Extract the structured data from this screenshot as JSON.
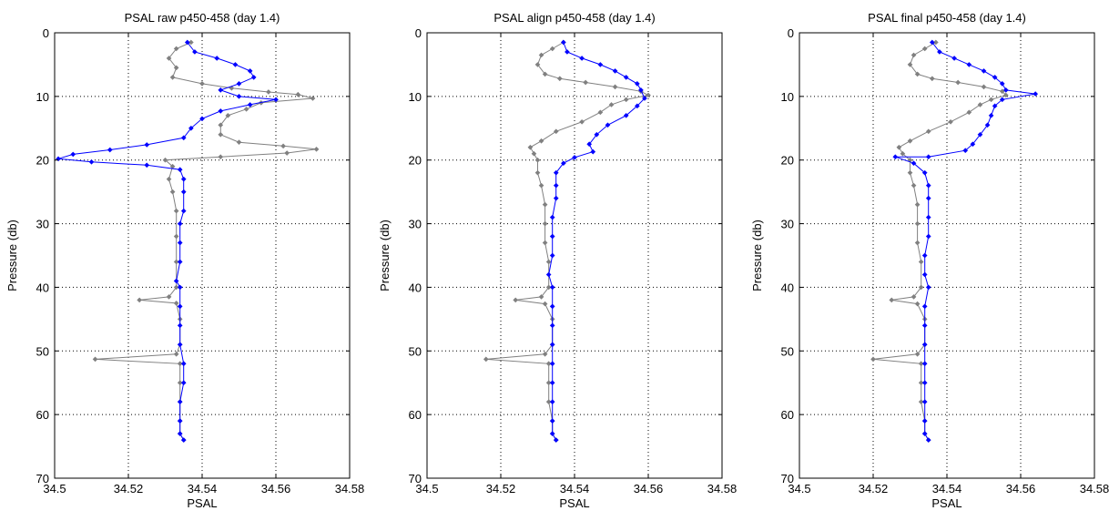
{
  "chart_data": [
    {
      "type": "line",
      "title": "PSAL raw p450-458 (day 1.4)",
      "xlabel": "PSAL",
      "ylabel": "Pressure (db)",
      "xlim": [
        34.5,
        34.58
      ],
      "ylim": [
        0,
        70
      ],
      "y_reversed": true,
      "grid": true,
      "x_ticks": [
        "34.5",
        "34.52",
        "34.54",
        "34.56",
        "34.58"
      ],
      "y_ticks": [
        "0",
        "10",
        "20",
        "30",
        "40",
        "50",
        "60",
        "70"
      ],
      "series": [
        {
          "color": "#808080",
          "marker": "diamond",
          "points": [
            [
              34.537,
              1.5
            ],
            [
              34.533,
              2.5
            ],
            [
              34.531,
              4
            ],
            [
              34.533,
              5.5
            ],
            [
              34.532,
              7
            ],
            [
              34.54,
              8
            ],
            [
              34.548,
              8.7
            ],
            [
              34.558,
              9.3
            ],
            [
              34.566,
              9.7
            ],
            [
              34.57,
              10.3
            ],
            [
              34.556,
              11
            ],
            [
              34.552,
              12
            ],
            [
              34.547,
              13
            ],
            [
              34.545,
              14.5
            ],
            [
              34.545,
              16
            ],
            [
              34.55,
              17.2
            ],
            [
              34.562,
              17.8
            ],
            [
              34.571,
              18.3
            ],
            [
              34.563,
              18.9
            ],
            [
              34.545,
              19.5
            ],
            [
              34.53,
              20
            ],
            [
              34.532,
              21
            ],
            [
              34.531,
              23
            ],
            [
              34.532,
              25
            ],
            [
              34.533,
              28
            ],
            [
              34.533,
              32
            ],
            [
              34.533,
              36
            ],
            [
              34.533,
              40
            ],
            [
              34.531,
              41.5
            ],
            [
              34.523,
              42
            ],
            [
              34.533,
              42.5
            ],
            [
              34.534,
              45
            ],
            [
              34.534,
              49
            ],
            [
              34.533,
              50.5
            ],
            [
              34.511,
              51.3
            ],
            [
              34.534,
              52
            ],
            [
              34.534,
              55
            ],
            [
              34.534,
              58
            ],
            [
              34.534,
              61
            ],
            [
              34.534,
              63
            ],
            [
              34.535,
              64
            ]
          ]
        },
        {
          "color": "#0000ff",
          "marker": "diamond",
          "points": [
            [
              34.536,
              1.5
            ],
            [
              34.538,
              3
            ],
            [
              34.544,
              4
            ],
            [
              34.549,
              5
            ],
            [
              34.553,
              6
            ],
            [
              34.554,
              7
            ],
            [
              34.55,
              8
            ],
            [
              34.545,
              9
            ],
            [
              34.55,
              10
            ],
            [
              34.56,
              10.5
            ],
            [
              34.553,
              11.3
            ],
            [
              34.545,
              12.3
            ],
            [
              34.54,
              13.5
            ],
            [
              34.537,
              15
            ],
            [
              34.535,
              16.5
            ],
            [
              34.525,
              17.6
            ],
            [
              34.515,
              18.4
            ],
            [
              34.505,
              19.1
            ],
            [
              34.501,
              19.8
            ],
            [
              34.51,
              20.3
            ],
            [
              34.525,
              20.8
            ],
            [
              34.534,
              21.5
            ],
            [
              34.535,
              23
            ],
            [
              34.535,
              25
            ],
            [
              34.535,
              28
            ],
            [
              34.534,
              30
            ],
            [
              34.534,
              33
            ],
            [
              34.534,
              36
            ],
            [
              34.533,
              39
            ],
            [
              34.534,
              40
            ],
            [
              34.534,
              43
            ],
            [
              34.534,
              46
            ],
            [
              34.534,
              49
            ],
            [
              34.535,
              52
            ],
            [
              34.535,
              55
            ],
            [
              34.534,
              58
            ],
            [
              34.534,
              61
            ],
            [
              34.534,
              63
            ],
            [
              34.535,
              64
            ]
          ]
        }
      ]
    },
    {
      "type": "line",
      "title": "PSAL align p450-458 (day 1.4)",
      "xlabel": "PSAL",
      "ylabel": "Pressure (db)",
      "xlim": [
        34.5,
        34.58
      ],
      "ylim": [
        0,
        70
      ],
      "y_reversed": true,
      "grid": true,
      "x_ticks": [
        "34.5",
        "34.52",
        "34.54",
        "34.56",
        "34.58"
      ],
      "y_ticks": [
        "0",
        "10",
        "20",
        "30",
        "40",
        "50",
        "60",
        "70"
      ],
      "series": [
        {
          "color": "#808080",
          "marker": "diamond",
          "points": [
            [
              34.537,
              1.5
            ],
            [
              34.534,
              2.5
            ],
            [
              34.531,
              3.5
            ],
            [
              34.53,
              5
            ],
            [
              34.532,
              6.5
            ],
            [
              34.536,
              7.2
            ],
            [
              34.543,
              7.8
            ],
            [
              34.551,
              8.5
            ],
            [
              34.558,
              9.2
            ],
            [
              34.56,
              9.8
            ],
            [
              34.554,
              10.5
            ],
            [
              34.55,
              11.3
            ],
            [
              34.547,
              12.5
            ],
            [
              34.542,
              14
            ],
            [
              34.535,
              15.5
            ],
            [
              34.531,
              17
            ],
            [
              34.528,
              18
            ],
            [
              34.529,
              19
            ],
            [
              34.53,
              20
            ],
            [
              34.53,
              22
            ],
            [
              34.531,
              24
            ],
            [
              34.532,
              27
            ],
            [
              34.532,
              30
            ],
            [
              34.532,
              33
            ],
            [
              34.533,
              36
            ],
            [
              34.533,
              40
            ],
            [
              34.531,
              41.5
            ],
            [
              34.524,
              42
            ],
            [
              34.532,
              42.6
            ],
            [
              34.534,
              45
            ],
            [
              34.534,
              49
            ],
            [
              34.532,
              50.5
            ],
            [
              34.516,
              51.3
            ],
            [
              34.533,
              52
            ],
            [
              34.533,
              55
            ],
            [
              34.533,
              58
            ],
            [
              34.534,
              61
            ],
            [
              34.534,
              63
            ],
            [
              34.535,
              64
            ]
          ]
        },
        {
          "color": "#0000ff",
          "marker": "diamond",
          "points": [
            [
              34.537,
              1.5
            ],
            [
              34.538,
              3
            ],
            [
              34.542,
              4
            ],
            [
              34.547,
              5
            ],
            [
              34.551,
              6
            ],
            [
              34.554,
              7
            ],
            [
              34.557,
              8
            ],
            [
              34.558,
              9
            ],
            [
              34.559,
              10.3
            ],
            [
              34.557,
              11.5
            ],
            [
              34.554,
              13
            ],
            [
              34.549,
              14.5
            ],
            [
              34.546,
              16
            ],
            [
              34.544,
              17.5
            ],
            [
              34.545,
              18.7
            ],
            [
              34.54,
              19.6
            ],
            [
              34.537,
              20.5
            ],
            [
              34.535,
              22
            ],
            [
              34.535,
              24
            ],
            [
              34.535,
              26
            ],
            [
              34.534,
              29
            ],
            [
              34.534,
              32
            ],
            [
              34.534,
              35
            ],
            [
              34.533,
              38
            ],
            [
              34.534,
              40
            ],
            [
              34.534,
              43
            ],
            [
              34.534,
              46
            ],
            [
              34.534,
              49
            ],
            [
              34.534,
              52
            ],
            [
              34.534,
              55
            ],
            [
              34.534,
              58
            ],
            [
              34.534,
              61
            ],
            [
              34.534,
              63
            ],
            [
              34.535,
              64
            ]
          ]
        }
      ]
    },
    {
      "type": "line",
      "title": "PSAL final p450-458 (day 1.4)",
      "xlabel": "PSAL",
      "ylabel": "Pressure (db)",
      "xlim": [
        34.5,
        34.58
      ],
      "ylim": [
        0,
        70
      ],
      "y_reversed": true,
      "grid": true,
      "x_ticks": [
        "34.5",
        "34.52",
        "34.54",
        "34.56",
        "34.58"
      ],
      "y_ticks": [
        "0",
        "10",
        "20",
        "30",
        "40",
        "50",
        "60",
        "70"
      ],
      "series": [
        {
          "color": "#808080",
          "marker": "diamond",
          "points": [
            [
              34.537,
              1.5
            ],
            [
              34.534,
              2.5
            ],
            [
              34.531,
              3.5
            ],
            [
              34.53,
              5
            ],
            [
              34.532,
              6.5
            ],
            [
              34.536,
              7.2
            ],
            [
              34.543,
              7.8
            ],
            [
              34.55,
              8.5
            ],
            [
              34.555,
              9.2
            ],
            [
              34.556,
              9.8
            ],
            [
              34.552,
              10.5
            ],
            [
              34.549,
              11.3
            ],
            [
              34.546,
              12.5
            ],
            [
              34.541,
              14
            ],
            [
              34.535,
              15.5
            ],
            [
              34.53,
              17
            ],
            [
              34.527,
              18
            ],
            [
              34.528,
              19
            ],
            [
              34.53,
              20
            ],
            [
              34.53,
              22
            ],
            [
              34.531,
              24
            ],
            [
              34.532,
              27
            ],
            [
              34.532,
              30
            ],
            [
              34.532,
              33
            ],
            [
              34.533,
              36
            ],
            [
              34.533,
              40
            ],
            [
              34.531,
              41.5
            ],
            [
              34.525,
              42
            ],
            [
              34.532,
              42.6
            ],
            [
              34.534,
              45
            ],
            [
              34.534,
              49
            ],
            [
              34.532,
              50.5
            ],
            [
              34.52,
              51.3
            ],
            [
              34.533,
              52
            ],
            [
              34.533,
              55
            ],
            [
              34.533,
              58
            ],
            [
              34.534,
              61
            ],
            [
              34.534,
              63
            ],
            [
              34.535,
              64
            ]
          ]
        },
        {
          "color": "#0000ff",
          "marker": "diamond",
          "points": [
            [
              34.536,
              1.5
            ],
            [
              34.538,
              3
            ],
            [
              34.542,
              4
            ],
            [
              34.546,
              5
            ],
            [
              34.55,
              6
            ],
            [
              34.553,
              7
            ],
            [
              34.555,
              8
            ],
            [
              34.556,
              9
            ],
            [
              34.564,
              9.6
            ],
            [
              34.555,
              10.5
            ],
            [
              34.553,
              11.5
            ],
            [
              34.552,
              13
            ],
            [
              34.551,
              14.5
            ],
            [
              34.549,
              16
            ],
            [
              34.547,
              17.5
            ],
            [
              34.545,
              18.5
            ],
            [
              34.535,
              19.5
            ],
            [
              34.526,
              19.5
            ],
            [
              34.531,
              20.5
            ],
            [
              34.534,
              22
            ],
            [
              34.535,
              24
            ],
            [
              34.535,
              26
            ],
            [
              34.535,
              29
            ],
            [
              34.535,
              32
            ],
            [
              34.534,
              35
            ],
            [
              34.534,
              38
            ],
            [
              34.535,
              40
            ],
            [
              34.534,
              43
            ],
            [
              34.534,
              46
            ],
            [
              34.534,
              49
            ],
            [
              34.534,
              52
            ],
            [
              34.534,
              55
            ],
            [
              34.534,
              58
            ],
            [
              34.534,
              61
            ],
            [
              34.534,
              63
            ],
            [
              34.535,
              64
            ]
          ]
        }
      ]
    }
  ]
}
